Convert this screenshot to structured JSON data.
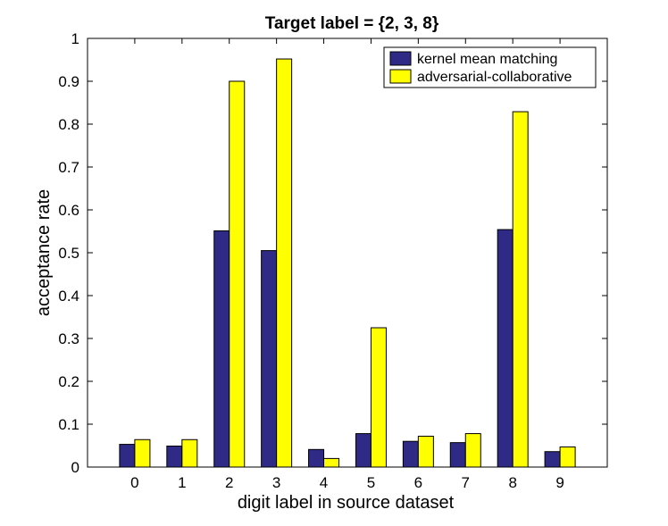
{
  "chart_data": {
    "type": "bar",
    "title": "Target label = {2, 3, 8}",
    "xlabel": "digit label in source dataset",
    "ylabel": "acceptance rate",
    "categories": [
      "0",
      "1",
      "2",
      "3",
      "4",
      "5",
      "6",
      "7",
      "8",
      "9"
    ],
    "ylim": [
      0,
      1
    ],
    "yticks": [
      "0",
      "0.1",
      "0.2",
      "0.3",
      "0.4",
      "0.5",
      "0.6",
      "0.7",
      "0.8",
      "0.9",
      "1"
    ],
    "series": [
      {
        "name": "kernel mean matching",
        "color": "#2e2a86",
        "values": [
          0.053,
          0.049,
          0.551,
          0.505,
          0.041,
          0.078,
          0.06,
          0.057,
          0.554,
          0.036
        ]
      },
      {
        "name": "adversarial-collaborative",
        "color": "#ffff00",
        "values": [
          0.064,
          0.064,
          0.9,
          0.952,
          0.02,
          0.325,
          0.072,
          0.078,
          0.829,
          0.047
        ]
      }
    ],
    "legend": "top-right",
    "grid": false
  }
}
